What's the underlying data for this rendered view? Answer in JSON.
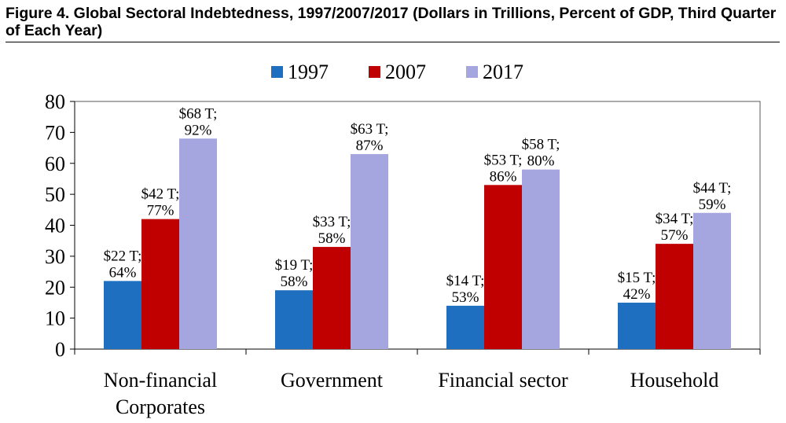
{
  "figure": {
    "caption": "Figure 4.  Global Sectoral Indebtedness, 1997/2007/2017 (Dollars in Trillions, Percent of GDP, Third Quarter of Each Year)"
  },
  "chart_data": {
    "type": "bar",
    "categories": [
      [
        "Non-financial",
        "Corporates"
      ],
      [
        "Government"
      ],
      [
        "Financial sector"
      ],
      [
        "Household"
      ]
    ],
    "series": [
      {
        "name": "1997",
        "color": "#1f6fc1",
        "values": [
          22,
          19,
          14,
          15
        ],
        "labels": [
          [
            "$22 T;",
            "64%"
          ],
          [
            "$19 T;",
            "58%"
          ],
          [
            "$14 T;",
            "53%"
          ],
          [
            "$15 T;",
            "42%"
          ]
        ]
      },
      {
        "name": "2007",
        "color": "#c00000",
        "values": [
          42,
          33,
          53,
          34
        ],
        "labels": [
          [
            "$42 T;",
            "77%"
          ],
          [
            "$33 T;",
            "58%"
          ],
          [
            "$53 T;",
            "86%"
          ],
          [
            "$34 T;",
            "57%"
          ]
        ]
      },
      {
        "name": "2017",
        "color": "#a5a5e0",
        "values": [
          68,
          63,
          58,
          44
        ],
        "labels": [
          [
            "$68 T;",
            "92%"
          ],
          [
            "$63 T;",
            "87%"
          ],
          [
            "$58 T;",
            "80%"
          ],
          [
            "$44 T;",
            "59%"
          ]
        ]
      }
    ],
    "ylim": [
      0,
      80
    ],
    "yticks": [
      0,
      10,
      20,
      30,
      40,
      50,
      60,
      70,
      80
    ],
    "legend_position": "top",
    "grid": false
  }
}
